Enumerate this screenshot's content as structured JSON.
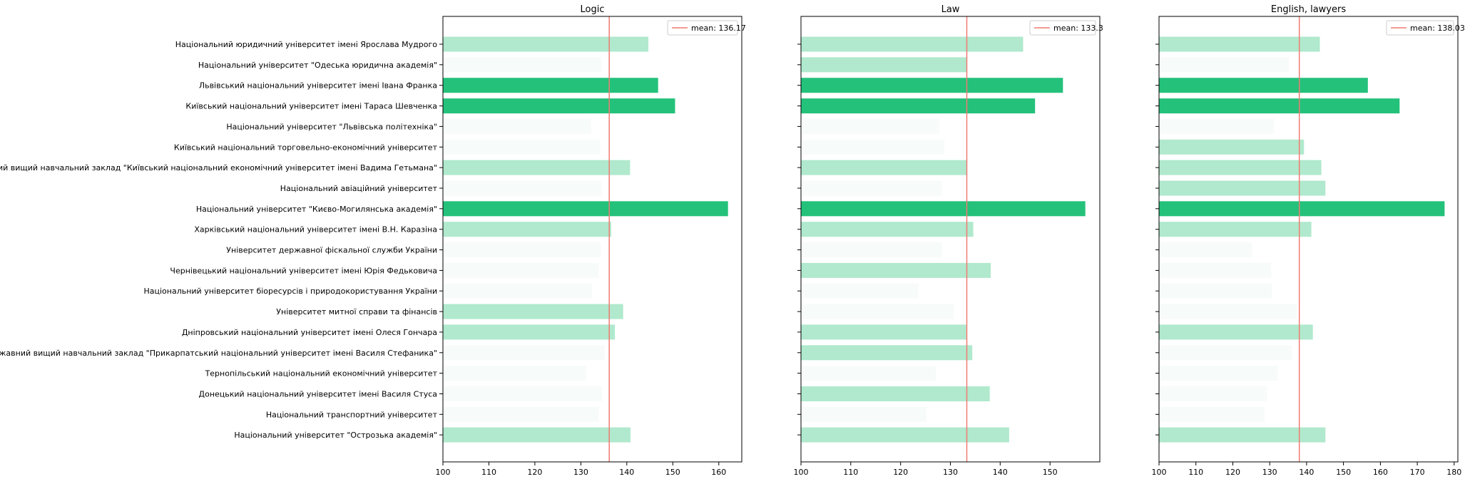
{
  "chart_data": {
    "type": "bar",
    "orientation": "horizontal",
    "categories": [
      "Національний юридичний університет імені Ярослава Мудрого",
      "Національний університет \"Одеська юридична академія\"",
      "Львівський національний університет імені Івана Франка",
      "Київський національний університет імені Тараса Шевченка",
      "Національний університет \"Львівська політехніка\"",
      "Київський національний торговельно-економічний університет",
      "Державний вищий навчальний заклад \"Київський національний економічний університет імені Вадима Гетьмана\"",
      "Національний авіаційний університет",
      "Національний університет \"Києво-Могилянська академія\"",
      "Харківський національний університет імені В.Н. Каразіна",
      "Університет державної фіскальної служби України",
      "Чернівецький національний університет імені Юрія Федьковича",
      "Національний університет біоресурсів і природокористування України",
      "Університет митної справи та фінансів",
      "Дніпровський національний університет імені Олеся Гончара",
      "Державний вищий навчальний заклад \"Прикарпатський національний університет імені Василя Стефаника\"",
      "Тернопільський національний економічний університет",
      "Донецький національний університет імені Василя Стуса",
      "Національний транспортний університет",
      "Національний університет \"Острозька академія\""
    ],
    "colors": {
      "strong": "#24c17b",
      "medium": "#b0e9cd",
      "faint": "#f7fbf9",
      "mean_line": "#f07b72",
      "axis": "#000000"
    },
    "panels": [
      {
        "title": "Logic",
        "mean_label": "mean: 136.17",
        "mean": 136.17,
        "xlim": [
          100,
          165
        ],
        "xticks": [
          "100",
          "110",
          "120",
          "130",
          "140",
          "150",
          "160"
        ],
        "show_category_labels": true,
        "values": [
          144.7,
          134.5,
          146.8,
          150.5,
          132.2,
          134.2,
          140.7,
          134.5,
          162.0,
          136.6,
          134.3,
          133.9,
          132.4,
          139.2,
          137.4,
          135.2,
          131.2,
          134.6,
          133.9,
          140.8
        ],
        "shades": [
          "medium",
          "faint",
          "strong",
          "strong",
          "faint",
          "faint",
          "medium",
          "faint",
          "strong",
          "medium",
          "faint",
          "faint",
          "faint",
          "medium",
          "medium",
          "faint",
          "faint",
          "faint",
          "faint",
          "medium"
        ]
      },
      {
        "title": "Law",
        "mean_label": "mean: 133.3",
        "mean": 133.3,
        "xlim": [
          100,
          160
        ],
        "xticks": [
          "100",
          "110",
          "120",
          "130",
          "140",
          "150"
        ],
        "show_category_labels": false,
        "values": [
          144.6,
          133.3,
          152.6,
          147.0,
          127.8,
          128.8,
          133.3,
          128.3,
          157.1,
          134.6,
          128.4,
          138.1,
          123.6,
          130.7,
          133.2,
          134.4,
          127.1,
          137.9,
          125.2,
          141.8
        ],
        "shades": [
          "medium",
          "medium",
          "strong",
          "strong",
          "faint",
          "faint",
          "medium",
          "faint",
          "strong",
          "medium",
          "faint",
          "medium",
          "faint",
          "faint",
          "medium",
          "medium",
          "faint",
          "medium",
          "faint",
          "medium"
        ]
      },
      {
        "title": "English, lawyers",
        "mean_label": "mean: 138.03",
        "mean": 138.03,
        "xlim": [
          100,
          181
        ],
        "xticks": [
          "100",
          "110",
          "120",
          "130",
          "140",
          "150",
          "160",
          "170",
          "180"
        ],
        "show_category_labels": false,
        "values": [
          143.6,
          135.2,
          156.6,
          165.2,
          131.2,
          139.3,
          144.0,
          145.1,
          177.4,
          141.3,
          125.2,
          130.4,
          130.6,
          137.3,
          141.7,
          136.1,
          132.2,
          129.3,
          128.6,
          145.1
        ],
        "shades": [
          "medium",
          "faint",
          "strong",
          "strong",
          "faint",
          "medium",
          "medium",
          "medium",
          "strong",
          "medium",
          "faint",
          "faint",
          "faint",
          "faint",
          "medium",
          "faint",
          "faint",
          "faint",
          "faint",
          "medium"
        ]
      }
    ]
  }
}
